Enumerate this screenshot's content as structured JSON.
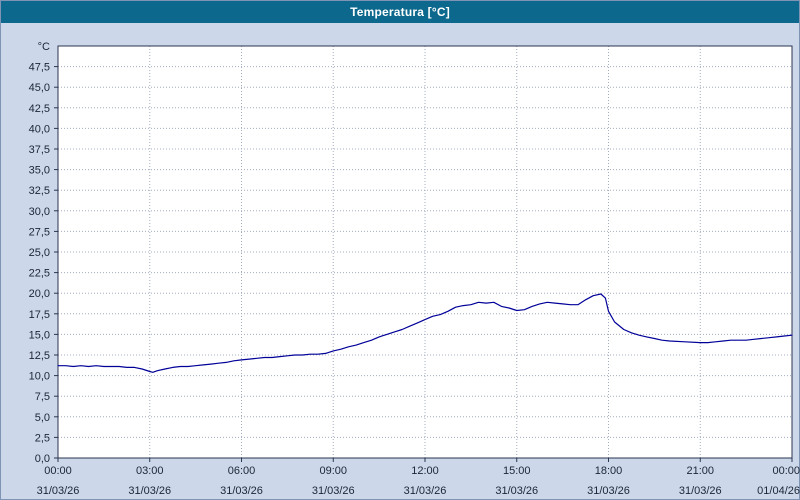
{
  "window": {
    "title": "Temperatura [°C]"
  },
  "colors": {
    "titlebar": "#0c688c",
    "titlebar_text": "#ffffff",
    "background": "#ccd8ea",
    "plot_bg": "#ffffff",
    "grid": "#a3adc0",
    "axis": "#2a3550",
    "text": "#1c2535",
    "line": "#000099"
  },
  "chart_data": {
    "type": "line",
    "title": "Temperatura [°C]",
    "xlabel": "",
    "ylabel": "°C",
    "ylim": [
      0,
      50
    ],
    "ytick_step": 2.5,
    "ytick_labels": [
      "0,0",
      "2,5",
      "5,0",
      "7,5",
      "10,0",
      "12,5",
      "15,0",
      "17,5",
      "20,0",
      "22,5",
      "25,0",
      "27,5",
      "30,0",
      "32,5",
      "35,0",
      "37,5",
      "40,0",
      "42,5",
      "45,0",
      "47,5"
    ],
    "x_range_hours": [
      0,
      24
    ],
    "xtick_interval_hours": 3,
    "grid": true,
    "legend_position": "none",
    "xticks": [
      {
        "label": "00:00",
        "date": "31/03/26"
      },
      {
        "label": "03:00",
        "date": "31/03/26"
      },
      {
        "label": "06:00",
        "date": "31/03/26"
      },
      {
        "label": "09:00",
        "date": "31/03/26"
      },
      {
        "label": "12:00",
        "date": "31/03/26"
      },
      {
        "label": "15:00",
        "date": "31/03/26"
      },
      {
        "label": "18:00",
        "date": "31/03/26"
      },
      {
        "label": "21:00",
        "date": "31/03/26"
      },
      {
        "label": "00:00",
        "date": "01/04/26"
      }
    ],
    "series": [
      {
        "name": "Temperatura",
        "color": "#000099",
        "points": [
          [
            0,
            11.2
          ],
          [
            0.25,
            11.2
          ],
          [
            0.5,
            11.1
          ],
          [
            0.75,
            11.2
          ],
          [
            1,
            11.1
          ],
          [
            1.25,
            11.2
          ],
          [
            1.5,
            11.1
          ],
          [
            1.75,
            11.1
          ],
          [
            2,
            11.1
          ],
          [
            2.25,
            11.0
          ],
          [
            2.5,
            11.0
          ],
          [
            2.75,
            10.8
          ],
          [
            3,
            10.5
          ],
          [
            3.1,
            10.4
          ],
          [
            3.25,
            10.6
          ],
          [
            3.5,
            10.8
          ],
          [
            3.75,
            11.0
          ],
          [
            4,
            11.1
          ],
          [
            4.25,
            11.1
          ],
          [
            4.5,
            11.2
          ],
          [
            4.75,
            11.3
          ],
          [
            5,
            11.4
          ],
          [
            5.25,
            11.5
          ],
          [
            5.5,
            11.6
          ],
          [
            5.75,
            11.8
          ],
          [
            6,
            11.9
          ],
          [
            6.25,
            12.0
          ],
          [
            6.5,
            12.1
          ],
          [
            6.75,
            12.2
          ],
          [
            7,
            12.2
          ],
          [
            7.25,
            12.3
          ],
          [
            7.5,
            12.4
          ],
          [
            7.75,
            12.5
          ],
          [
            8,
            12.5
          ],
          [
            8.25,
            12.6
          ],
          [
            8.5,
            12.6
          ],
          [
            8.75,
            12.7
          ],
          [
            9,
            13.0
          ],
          [
            9.25,
            13.2
          ],
          [
            9.5,
            13.5
          ],
          [
            9.75,
            13.7
          ],
          [
            10,
            14.0
          ],
          [
            10.25,
            14.3
          ],
          [
            10.5,
            14.7
          ],
          [
            10.75,
            15.0
          ],
          [
            11,
            15.3
          ],
          [
            11.25,
            15.6
          ],
          [
            11.5,
            16.0
          ],
          [
            11.75,
            16.4
          ],
          [
            12,
            16.8
          ],
          [
            12.25,
            17.2
          ],
          [
            12.5,
            17.4
          ],
          [
            12.75,
            17.8
          ],
          [
            13,
            18.3
          ],
          [
            13.25,
            18.5
          ],
          [
            13.5,
            18.6
          ],
          [
            13.75,
            18.9
          ],
          [
            14,
            18.8
          ],
          [
            14.25,
            18.9
          ],
          [
            14.5,
            18.4
          ],
          [
            14.75,
            18.2
          ],
          [
            15,
            17.9
          ],
          [
            15.25,
            18.0
          ],
          [
            15.5,
            18.4
          ],
          [
            15.75,
            18.7
          ],
          [
            16,
            18.9
          ],
          [
            16.25,
            18.8
          ],
          [
            16.5,
            18.7
          ],
          [
            16.75,
            18.6
          ],
          [
            17,
            18.6
          ],
          [
            17.25,
            19.2
          ],
          [
            17.5,
            19.7
          ],
          [
            17.75,
            19.9
          ],
          [
            17.9,
            19.4
          ],
          [
            18,
            17.8
          ],
          [
            18.2,
            16.5
          ],
          [
            18.5,
            15.6
          ],
          [
            18.75,
            15.2
          ],
          [
            19,
            14.9
          ],
          [
            19.25,
            14.7
          ],
          [
            19.5,
            14.5
          ],
          [
            19.75,
            14.3
          ],
          [
            20,
            14.2
          ],
          [
            20.5,
            14.1
          ],
          [
            21,
            14.0
          ],
          [
            21.25,
            14.0
          ],
          [
            21.5,
            14.1
          ],
          [
            21.75,
            14.2
          ],
          [
            22,
            14.3
          ],
          [
            22.25,
            14.3
          ],
          [
            22.5,
            14.3
          ],
          [
            22.75,
            14.4
          ],
          [
            23,
            14.5
          ],
          [
            23.25,
            14.6
          ],
          [
            23.5,
            14.7
          ],
          [
            23.75,
            14.8
          ],
          [
            24,
            14.9
          ]
        ]
      }
    ]
  }
}
